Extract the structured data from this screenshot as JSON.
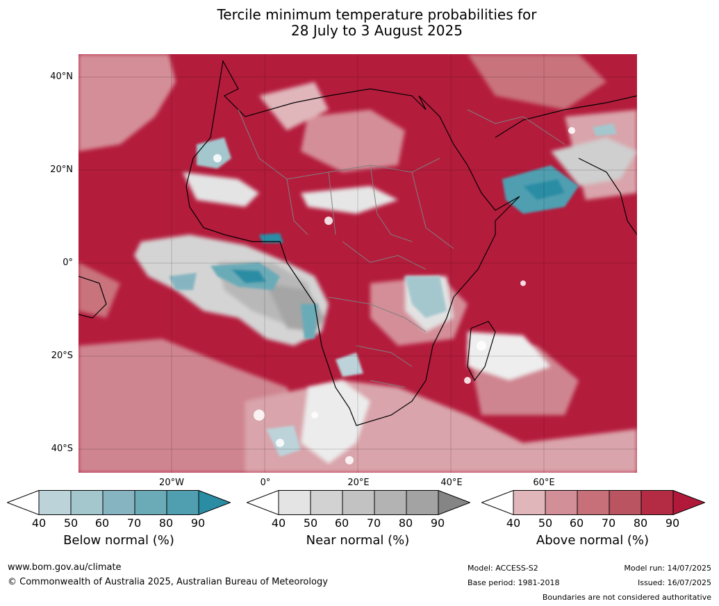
{
  "title_line1": "Tercile minimum temperature probabilities for",
  "title_line2": "28 July to 3 August 2025",
  "map": {
    "lat_labels": [
      "40°N",
      "20°N",
      "0°",
      "20°S",
      "40°S"
    ],
    "lon_labels": [
      "20°W",
      "0°",
      "20°E",
      "40°E",
      "60°E"
    ]
  },
  "colorbars": [
    {
      "label": "Below normal (%)",
      "ticks": [
        "40",
        "50",
        "60",
        "70",
        "80",
        "90"
      ],
      "colors": [
        "#ffffff",
        "#bcd3da",
        "#a4c7ce",
        "#86b5c1",
        "#6babb8",
        "#4f9fb1",
        "#2a8da4"
      ]
    },
    {
      "label": "Near normal (%)",
      "ticks": [
        "40",
        "50",
        "60",
        "70",
        "80",
        "90"
      ],
      "colors": [
        "#ffffff",
        "#e4e4e4",
        "#d2d2d2",
        "#c2c2c2",
        "#b3b3b3",
        "#a3a3a3",
        "#858585"
      ]
    },
    {
      "label": "Above normal (%)",
      "ticks": [
        "40",
        "50",
        "60",
        "70",
        "80",
        "90"
      ],
      "colors": [
        "#ffffff",
        "#e0b6bb",
        "#d38f97",
        "#c87079",
        "#bb5461",
        "#b42c44",
        "#b1193a"
      ]
    }
  ],
  "footer": {
    "website": "www.bom.gov.au/climate",
    "copyright": "© Commonwealth of Australia 2025, Australian Bureau of Meteorology",
    "model": "Model: ACCESS-S2",
    "base_period": "Base period: 1981-2018",
    "model_run": "Model run: 14/07/2025",
    "issued": "Issued: 16/07/2025",
    "disclaimer": "Boundaries are not considered authoritative"
  }
}
